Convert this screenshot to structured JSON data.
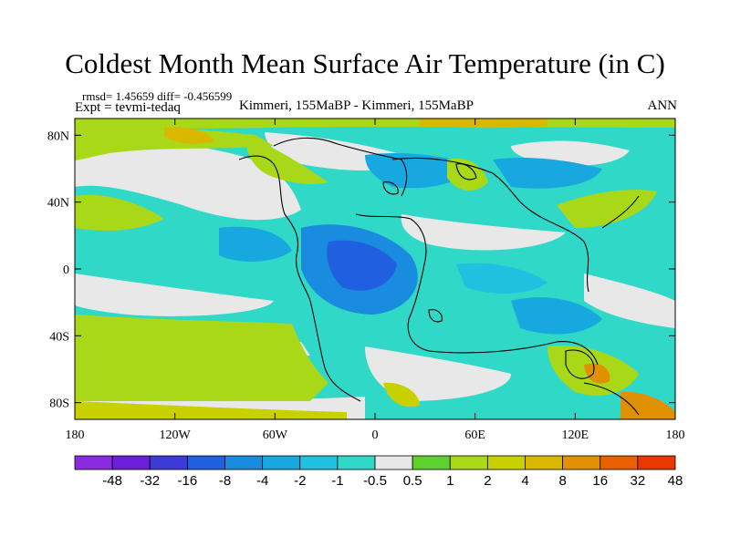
{
  "title": "Coldest Month Mean Surface Air Temperature (in C)",
  "stats": "rmsd= 1.45659 diff= -0.456599",
  "experiment": "Expt = tevmi-tedaq",
  "subtitle": "Kimmeri, 155MaBP - Kimmeri, 155MaBP",
  "season": "ANN",
  "map": {
    "lon_range": [
      -180,
      180
    ],
    "lat_range": [
      -90,
      90
    ],
    "lon_ticks": [
      {
        "value": -180,
        "label": "180"
      },
      {
        "value": -120,
        "label": "120W"
      },
      {
        "value": -60,
        "label": "60W"
      },
      {
        "value": 0,
        "label": "0"
      },
      {
        "value": 60,
        "label": "60E"
      },
      {
        "value": 120,
        "label": "120E"
      },
      {
        "value": 180,
        "label": "180"
      }
    ],
    "lat_ticks": [
      {
        "value": 80,
        "label": "80N"
      },
      {
        "value": 40,
        "label": "40N"
      },
      {
        "value": 0,
        "label": "0"
      },
      {
        "value": -40,
        "label": "40S"
      },
      {
        "value": -80,
        "label": "80S"
      }
    ]
  },
  "colorbar": {
    "colors": [
      "#8a2be2",
      "#6a1fd8",
      "#3d3ad9",
      "#2060e0",
      "#1a8ce0",
      "#18a8e0",
      "#20c0e0",
      "#30d8c8",
      "#e8e8e8",
      "#60d030",
      "#a8d818",
      "#c8d000",
      "#d8b800",
      "#e09000",
      "#e86000",
      "#e83800"
    ],
    "labels": [
      "-48",
      "-32",
      "-16",
      "-8",
      "-4",
      "-2",
      "-1",
      "-0.5",
      "0.5",
      "1",
      "2",
      "4",
      "8",
      "16",
      "32",
      "48"
    ]
  }
}
